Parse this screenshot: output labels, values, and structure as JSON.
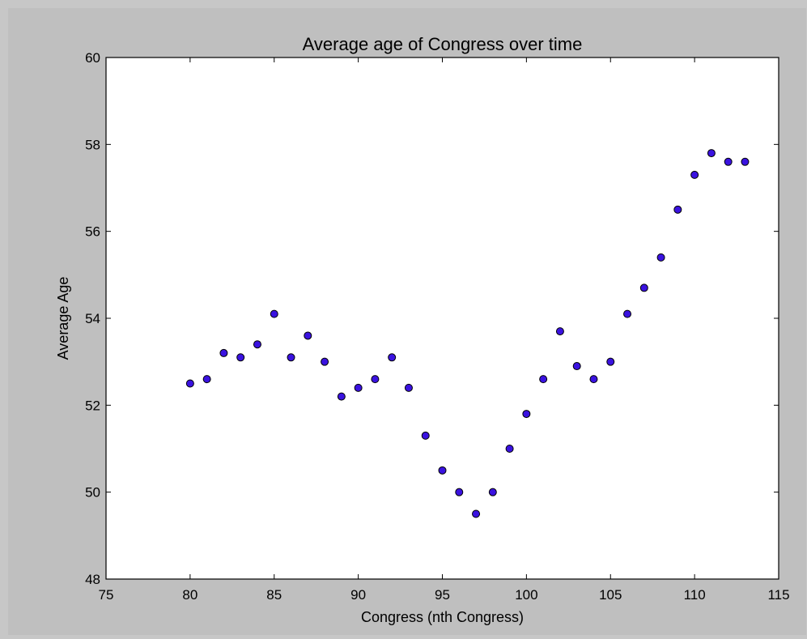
{
  "chart_data": {
    "type": "scatter",
    "title": "Average age of Congress over time",
    "xlabel": "Congress (nth Congress)",
    "ylabel": "Average Age",
    "xlim": [
      75,
      115
    ],
    "ylim": [
      48,
      60
    ],
    "xticks": [
      75,
      80,
      85,
      90,
      95,
      100,
      105,
      110,
      115
    ],
    "yticks": [
      48,
      50,
      52,
      54,
      56,
      58,
      60
    ],
    "grid": false,
    "marker_color": "#3a12e0",
    "x": [
      80,
      81,
      82,
      83,
      84,
      85,
      86,
      87,
      88,
      89,
      90,
      91,
      92,
      93,
      94,
      95,
      96,
      97,
      98,
      99,
      100,
      101,
      102,
      103,
      104,
      105,
      106,
      107,
      108,
      109,
      110,
      111,
      112,
      113
    ],
    "y": [
      52.5,
      52.6,
      53.2,
      53.1,
      53.4,
      54.1,
      53.1,
      53.6,
      53.0,
      52.2,
      52.4,
      52.6,
      53.1,
      52.4,
      51.3,
      50.5,
      50.0,
      49.5,
      50.0,
      51.0,
      51.8,
      52.6,
      53.7,
      52.9,
      52.6,
      53.0,
      54.1,
      54.7,
      55.4,
      56.5,
      57.3,
      57.8,
      57.6,
      57.6
    ]
  }
}
